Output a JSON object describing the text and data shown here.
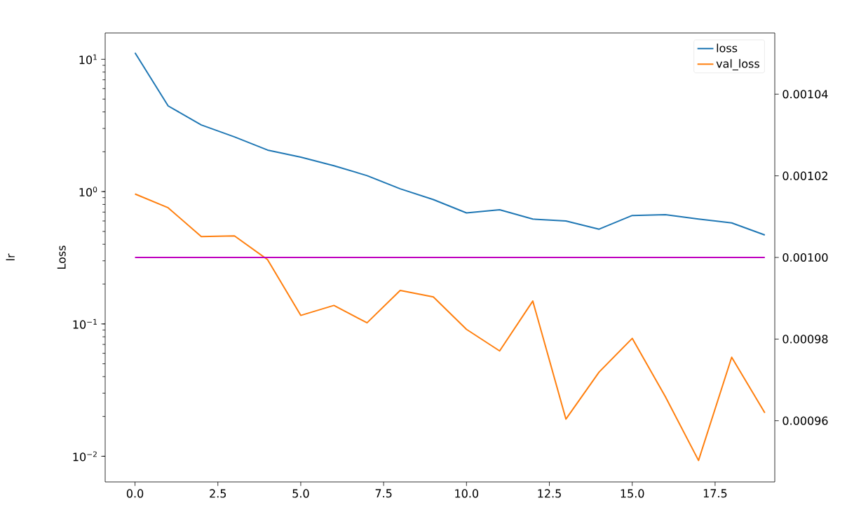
{
  "chart_data": {
    "type": "line",
    "ylabel": "Loss",
    "annotations": [
      "lr"
    ],
    "x": [
      0,
      1,
      2,
      3,
      4,
      5,
      6,
      7,
      8,
      9,
      10,
      11,
      12,
      13,
      14,
      15,
      16,
      17,
      18,
      19
    ],
    "series": [
      {
        "name": "loss",
        "color": "#1f77b4",
        "values": [
          11.2,
          4.44,
          3.19,
          2.59,
          2.06,
          1.82,
          1.57,
          1.32,
          1.05,
          0.87,
          0.69,
          0.73,
          0.62,
          0.6,
          0.52,
          0.66,
          0.67,
          0.62,
          0.58,
          0.47
        ]
      },
      {
        "name": "val_loss",
        "color": "#ff7f0e",
        "values": [
          0.96,
          0.755,
          0.457,
          0.463,
          0.306,
          0.116,
          0.138,
          0.102,
          0.179,
          0.16,
          0.091,
          0.0625,
          0.149,
          0.0191,
          0.0433,
          0.0778,
          0.0282,
          0.0093,
          0.056,
          0.0213
        ]
      },
      {
        "color": "#bf00bf",
        "axis": "y2",
        "values": [
          0.001,
          0.001,
          0.001,
          0.001,
          0.001,
          0.001,
          0.001,
          0.001,
          0.001,
          0.001,
          0.001,
          0.001,
          0.001,
          0.001,
          0.001,
          0.001,
          0.001,
          0.001,
          0.001,
          0.001
        ]
      }
    ],
    "log": "y",
    "legend": "top right",
    "grid": false,
    "xlim": [
      -0.9,
      19.3
    ],
    "xticks": [
      {
        "value": 0,
        "label": "0.0"
      },
      2.5,
      {
        "value": 5,
        "label": "5.0"
      },
      7.5,
      {
        "value": 10,
        "label": "10.0"
      },
      12.5,
      {
        "value": 15,
        "label": "15.0"
      },
      17.5
    ],
    "ylim": [
      0.0064,
      15.8
    ],
    "yticks": [
      {
        "value": 0.01,
        "label": "10$^{−2}$"
      },
      {
        "value": 0.1,
        "label": "10$^{−1}$"
      },
      {
        "value": 1,
        "label": "10$^{0}$"
      },
      {
        "value": 10,
        "label": "10$^{1}$"
      }
    ],
    "y2lim": [
      0.000945,
      0.001055
    ],
    "y2ticks": [
      0.00096,
      0.00098,
      {
        "value": 0.001,
        "label": "0.00100"
      },
      0.00102,
      0.00104
    ]
  }
}
